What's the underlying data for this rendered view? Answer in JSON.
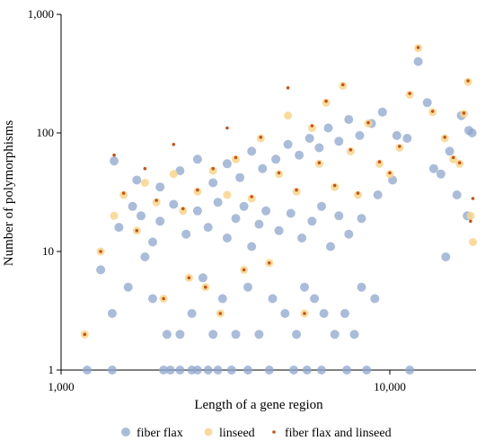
{
  "chart_data": {
    "type": "scatter",
    "xlabel": "Length of a gene region",
    "ylabel": "Number of polymorphisms",
    "x_scale": "log",
    "y_scale": "log",
    "xlim": [
      1000,
      20000
    ],
    "ylim": [
      1,
      1000
    ],
    "x_ticks": [
      "1,000",
      "10,000"
    ],
    "y_ticks": [
      "1",
      "10",
      "100",
      "1,000"
    ],
    "grid": false,
    "legend_position": "bottom",
    "series": [
      {
        "name": "fiber flax",
        "color": "#8ea5cc",
        "points": [
          [
            1200,
            1
          ],
          [
            1430,
            1
          ],
          [
            2050,
            1
          ],
          [
            2150,
            1
          ],
          [
            2300,
            1
          ],
          [
            2500,
            1
          ],
          [
            2600,
            1
          ],
          [
            2800,
            1
          ],
          [
            3000,
            1
          ],
          [
            3300,
            1
          ],
          [
            3700,
            1
          ],
          [
            4300,
            1
          ],
          [
            5100,
            1
          ],
          [
            5600,
            1
          ],
          [
            6200,
            1
          ],
          [
            7400,
            1
          ],
          [
            8500,
            1
          ],
          [
            11500,
            1
          ],
          [
            1320,
            7
          ],
          [
            1430,
            3
          ],
          [
            1600,
            5
          ],
          [
            1800,
            9
          ],
          [
            1900,
            4
          ],
          [
            2100,
            2
          ],
          [
            2300,
            2
          ],
          [
            2500,
            3
          ],
          [
            2700,
            6
          ],
          [
            2900,
            2
          ],
          [
            3100,
            4
          ],
          [
            3400,
            2
          ],
          [
            3700,
            5
          ],
          [
            4000,
            2
          ],
          [
            4400,
            4
          ],
          [
            4800,
            3
          ],
          [
            5200,
            2
          ],
          [
            5500,
            5
          ],
          [
            5900,
            4
          ],
          [
            6300,
            3
          ],
          [
            6800,
            2
          ],
          [
            7300,
            3
          ],
          [
            7800,
            2
          ],
          [
            8200,
            5
          ],
          [
            9000,
            4
          ],
          [
            1500,
            16
          ],
          [
            1650,
            24
          ],
          [
            1750,
            20
          ],
          [
            1900,
            12
          ],
          [
            2000,
            18
          ],
          [
            2200,
            25
          ],
          [
            2400,
            14
          ],
          [
            2600,
            22
          ],
          [
            2800,
            16
          ],
          [
            3000,
            26
          ],
          [
            3200,
            13
          ],
          [
            3400,
            19
          ],
          [
            3600,
            24
          ],
          [
            3800,
            11
          ],
          [
            4000,
            17
          ],
          [
            4200,
            22
          ],
          [
            4600,
            15
          ],
          [
            5000,
            21
          ],
          [
            5400,
            13
          ],
          [
            5800,
            18
          ],
          [
            6200,
            24
          ],
          [
            6600,
            11
          ],
          [
            7000,
            20
          ],
          [
            7500,
            14
          ],
          [
            8200,
            19
          ],
          [
            9200,
            30
          ],
          [
            10200,
            40
          ],
          [
            1450,
            58
          ],
          [
            1700,
            40
          ],
          [
            2000,
            35
          ],
          [
            2300,
            48
          ],
          [
            2600,
            60
          ],
          [
            2900,
            38
          ],
          [
            3200,
            55
          ],
          [
            3500,
            42
          ],
          [
            3800,
            70
          ],
          [
            4100,
            50
          ],
          [
            4500,
            60
          ],
          [
            4900,
            80
          ],
          [
            5300,
            65
          ],
          [
            5700,
            90
          ],
          [
            6100,
            75
          ],
          [
            6500,
            110
          ],
          [
            7000,
            85
          ],
          [
            7500,
            130
          ],
          [
            8100,
            95
          ],
          [
            8800,
            120
          ],
          [
            9500,
            150
          ],
          [
            10500,
            95
          ],
          [
            11300,
            90
          ],
          [
            12200,
            400
          ],
          [
            13000,
            180
          ],
          [
            13600,
            50
          ],
          [
            14300,
            45
          ],
          [
            14800,
            9
          ],
          [
            15200,
            70
          ],
          [
            16000,
            30
          ],
          [
            16500,
            140
          ],
          [
            17200,
            20
          ],
          [
            17800,
            100
          ],
          [
            17400,
            105
          ]
        ]
      },
      {
        "name": "linseed",
        "color": "#f8d58c",
        "points": [
          [
            1180,
            2
          ],
          [
            1320,
            10
          ],
          [
            1450,
            20
          ],
          [
            1550,
            30
          ],
          [
            1700,
            15
          ],
          [
            1800,
            38
          ],
          [
            1950,
            26
          ],
          [
            2050,
            4
          ],
          [
            2200,
            45
          ],
          [
            2350,
            22
          ],
          [
            2450,
            6
          ],
          [
            2600,
            32
          ],
          [
            2750,
            5
          ],
          [
            2900,
            48
          ],
          [
            3050,
            3
          ],
          [
            3200,
            30
          ],
          [
            3400,
            60
          ],
          [
            3600,
            7
          ],
          [
            3800,
            28
          ],
          [
            4050,
            90
          ],
          [
            4300,
            8
          ],
          [
            4600,
            45
          ],
          [
            4900,
            140
          ],
          [
            5200,
            32
          ],
          [
            5500,
            3
          ],
          [
            5800,
            110
          ],
          [
            6100,
            55
          ],
          [
            6400,
            180
          ],
          [
            6800,
            35
          ],
          [
            7200,
            250
          ],
          [
            7600,
            70
          ],
          [
            8000,
            30
          ],
          [
            8600,
            120
          ],
          [
            9300,
            55
          ],
          [
            10000,
            45
          ],
          [
            10700,
            75
          ],
          [
            11500,
            210
          ],
          [
            12200,
            520
          ],
          [
            13500,
            150
          ],
          [
            14700,
            90
          ],
          [
            15600,
            60
          ],
          [
            16300,
            55
          ],
          [
            16800,
            145
          ],
          [
            17300,
            270
          ],
          [
            17600,
            20
          ],
          [
            17900,
            12
          ]
        ]
      },
      {
        "name": "fiber flax and linseed",
        "color": "#c0561e",
        "points": [
          [
            1180,
            2
          ],
          [
            1320,
            10
          ],
          [
            1450,
            65
          ],
          [
            1550,
            31
          ],
          [
            1700,
            15
          ],
          [
            1800,
            50
          ],
          [
            1950,
            27
          ],
          [
            2050,
            4
          ],
          [
            2200,
            80
          ],
          [
            2350,
            23
          ],
          [
            2450,
            6
          ],
          [
            2600,
            33
          ],
          [
            2750,
            5
          ],
          [
            2900,
            50
          ],
          [
            3050,
            3
          ],
          [
            3200,
            110
          ],
          [
            3400,
            62
          ],
          [
            3600,
            7
          ],
          [
            3800,
            29
          ],
          [
            4050,
            92
          ],
          [
            4300,
            8
          ],
          [
            4600,
            46
          ],
          [
            4900,
            240
          ],
          [
            5200,
            33
          ],
          [
            5500,
            3
          ],
          [
            5800,
            115
          ],
          [
            6100,
            56
          ],
          [
            6400,
            185
          ],
          [
            6800,
            36
          ],
          [
            7200,
            255
          ],
          [
            7600,
            72
          ],
          [
            8000,
            31
          ],
          [
            8600,
            122
          ],
          [
            9300,
            57
          ],
          [
            10000,
            46
          ],
          [
            10700,
            77
          ],
          [
            11500,
            215
          ],
          [
            12200,
            525
          ],
          [
            13500,
            152
          ],
          [
            14700,
            92
          ],
          [
            15600,
            62
          ],
          [
            16300,
            56
          ],
          [
            16800,
            147
          ],
          [
            17300,
            275
          ],
          [
            17600,
            18
          ],
          [
            17900,
            28
          ]
        ]
      }
    ]
  }
}
